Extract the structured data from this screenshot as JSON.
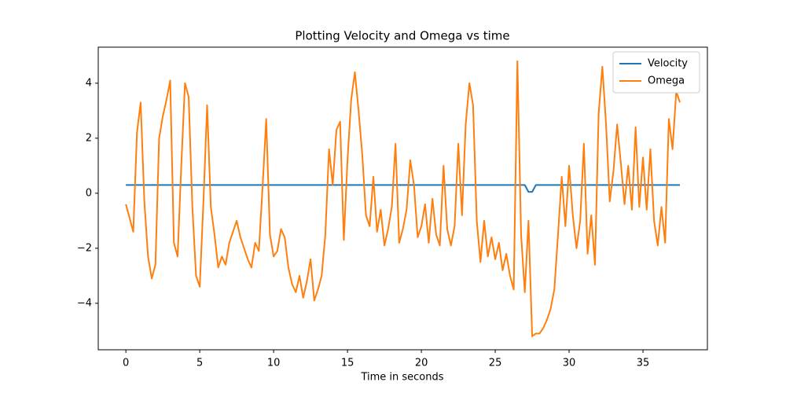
{
  "chart_data": {
    "type": "line",
    "title": "Plotting Velocity and Omega vs time",
    "xlabel": "Time in seconds",
    "x": [
      0,
      0.25,
      0.5,
      0.75,
      1,
      1.25,
      1.5,
      1.75,
      2,
      2.25,
      2.5,
      2.75,
      3,
      3.25,
      3.5,
      3.75,
      4,
      4.25,
      4.5,
      4.75,
      5,
      5.25,
      5.5,
      5.75,
      6,
      6.25,
      6.5,
      6.75,
      7,
      7.25,
      7.5,
      7.75,
      8,
      8.25,
      8.5,
      8.75,
      9,
      9.25,
      9.5,
      9.75,
      10,
      10.25,
      10.5,
      10.75,
      11,
      11.25,
      11.5,
      11.75,
      12,
      12.25,
      12.5,
      12.75,
      13,
      13.25,
      13.5,
      13.75,
      14,
      14.25,
      14.5,
      14.75,
      15,
      15.25,
      15.5,
      15.75,
      16,
      16.25,
      16.5,
      16.75,
      17,
      17.25,
      17.5,
      17.75,
      18,
      18.25,
      18.5,
      18.75,
      19,
      19.25,
      19.5,
      19.75,
      20,
      20.25,
      20.5,
      20.75,
      21,
      21.25,
      21.5,
      21.75,
      22,
      22.25,
      22.5,
      22.75,
      23,
      23.25,
      23.5,
      23.75,
      24,
      24.25,
      24.5,
      24.75,
      25,
      25.25,
      25.5,
      25.75,
      26,
      26.25,
      26.5,
      26.75,
      27,
      27.25,
      27.5,
      27.75,
      28,
      28.25,
      28.5,
      28.75,
      29,
      29.25,
      29.5,
      29.75,
      30,
      30.25,
      30.5,
      30.75,
      31,
      31.25,
      31.5,
      31.75,
      32,
      32.25,
      32.5,
      32.75,
      33,
      33.25,
      33.5,
      33.75,
      34,
      34.25,
      34.5,
      34.75,
      35,
      35.25,
      35.5,
      35.75,
      36,
      36.25,
      36.5,
      36.75,
      37,
      37.25,
      37.5
    ],
    "series": [
      {
        "name": "Velocity",
        "color": "#1f77b4",
        "values": [
          0.3,
          0.3,
          0.3,
          0.3,
          0.3,
          0.3,
          0.3,
          0.3,
          0.3,
          0.3,
          0.3,
          0.3,
          0.3,
          0.3,
          0.3,
          0.3,
          0.3,
          0.3,
          0.3,
          0.3,
          0.3,
          0.3,
          0.3,
          0.3,
          0.3,
          0.3,
          0.3,
          0.3,
          0.3,
          0.3,
          0.3,
          0.3,
          0.3,
          0.3,
          0.3,
          0.3,
          0.3,
          0.3,
          0.3,
          0.3,
          0.3,
          0.3,
          0.3,
          0.3,
          0.3,
          0.3,
          0.3,
          0.3,
          0.3,
          0.3,
          0.3,
          0.3,
          0.3,
          0.3,
          0.3,
          0.3,
          0.3,
          0.3,
          0.3,
          0.3,
          0.3,
          0.3,
          0.3,
          0.3,
          0.3,
          0.3,
          0.3,
          0.3,
          0.3,
          0.3,
          0.3,
          0.3,
          0.3,
          0.3,
          0.3,
          0.3,
          0.3,
          0.3,
          0.3,
          0.3,
          0.3,
          0.3,
          0.3,
          0.3,
          0.3,
          0.3,
          0.3,
          0.3,
          0.3,
          0.3,
          0.3,
          0.3,
          0.3,
          0.3,
          0.3,
          0.3,
          0.3,
          0.3,
          0.3,
          0.3,
          0.3,
          0.3,
          0.3,
          0.3,
          0.3,
          0.3,
          0.3,
          0.3,
          0.3,
          0.05,
          0.05,
          0.3,
          0.3,
          0.3,
          0.3,
          0.3,
          0.3,
          0.3,
          0.3,
          0.3,
          0.3,
          0.3,
          0.3,
          0.3,
          0.3,
          0.3,
          0.3,
          0.3,
          0.3,
          0.3,
          0.3,
          0.3,
          0.3,
          0.3,
          0.3,
          0.3,
          0.3,
          0.3,
          0.3,
          0.3,
          0.3,
          0.3,
          0.3,
          0.3,
          0.3,
          0.3,
          0.3,
          0.3,
          0.3,
          0.3,
          0.3
        ]
      },
      {
        "name": "Omega",
        "color": "#ff7f0e",
        "values": [
          -0.4,
          -0.9,
          -1.4,
          2.2,
          3.3,
          -0.3,
          -2.3,
          -3.1,
          -2.6,
          2.0,
          2.8,
          3.4,
          4.1,
          -1.8,
          -2.3,
          1.0,
          4.0,
          3.5,
          -0.5,
          -3.0,
          -3.4,
          -0.3,
          3.2,
          -0.5,
          -1.5,
          -2.7,
          -2.3,
          -2.6,
          -1.8,
          -1.4,
          -1.0,
          -1.6,
          -2.0,
          -2.4,
          -2.7,
          -1.8,
          -2.1,
          0.2,
          2.7,
          -1.5,
          -2.3,
          -2.1,
          -1.3,
          -1.6,
          -2.7,
          -3.3,
          -3.6,
          -3.0,
          -3.8,
          -3.2,
          -2.4,
          -3.9,
          -3.5,
          -3.0,
          -1.5,
          1.6,
          0.3,
          2.3,
          2.6,
          -1.7,
          1.2,
          3.4,
          4.4,
          3.0,
          1.4,
          -0.8,
          -1.2,
          0.6,
          -1.4,
          -0.6,
          -1.9,
          -1.3,
          -0.5,
          1.8,
          -1.8,
          -1.3,
          -0.6,
          1.2,
          0.3,
          -1.6,
          -1.2,
          -0.4,
          -1.8,
          -0.2,
          -1.5,
          -1.9,
          1.0,
          -1.3,
          -1.9,
          -1.2,
          1.8,
          -0.8,
          2.5,
          4.0,
          3.2,
          -1.0,
          -2.5,
          -1.0,
          -2.3,
          -1.6,
          -2.4,
          -1.8,
          -2.8,
          -2.2,
          -3.0,
          -3.5,
          4.8,
          -1.5,
          -3.6,
          -1.0,
          -5.2,
          -5.1,
          -5.1,
          -4.9,
          -4.6,
          -4.2,
          -3.5,
          -1.5,
          0.6,
          -1.2,
          1.0,
          -0.8,
          -2.0,
          -1.0,
          1.8,
          -2.2,
          -0.8,
          -2.6,
          2.9,
          4.6,
          2.5,
          -0.3,
          0.8,
          2.5,
          1.1,
          -0.4,
          1.0,
          -0.6,
          2.4,
          -0.5,
          1.3,
          -0.6,
          1.6,
          -1.0,
          -1.9,
          -0.5,
          -1.8,
          2.7,
          1.6,
          3.7,
          3.3
        ]
      }
    ],
    "xlim": [
      -1.87,
      39.36
    ],
    "ylim": [
      -5.69,
      5.31
    ],
    "xticks": [
      0,
      5,
      10,
      15,
      20,
      25,
      30,
      35
    ],
    "yticks": [
      {
        "value": -4,
        "label": "−4"
      },
      {
        "value": -2,
        "label": "−2"
      },
      0,
      2,
      4
    ],
    "legend": "upper right"
  }
}
